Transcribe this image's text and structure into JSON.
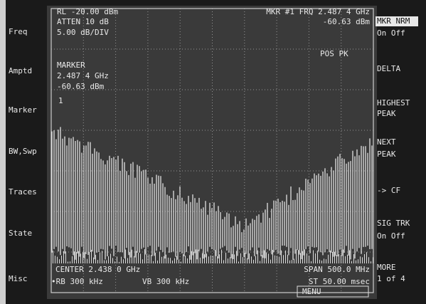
{
  "left_menu": [
    "Freq",
    "Amptd",
    "Marker",
    "BW,Swp",
    "Traces",
    "State",
    "Misc"
  ],
  "header": {
    "ref_level": "RL -20.00 dBm",
    "marker_freq": "MKR #1 FRQ 2.487 4 GHz",
    "atten": "ATTEN 10 dB",
    "marker_amp": "-60.63 dBm",
    "scale": "5.00 dB/DIV",
    "peak_mode": "POS PK"
  },
  "marker_box": {
    "title": "MARKER",
    "freq": "2.487 4 GHz",
    "amp": "-60.63 dBm",
    "number": "1"
  },
  "footer": {
    "center": "CENTER 2.438 0 GHz",
    "span": "SPAN 500.0 MHz",
    "rbw": "•RB 300 kHz",
    "vbw": "VB 300 kHz",
    "sweep": "ST 50.00 msec",
    "menu": "MENU"
  },
  "right_menu": [
    [
      "MKR NRM",
      "On Off"
    ],
    [
      "DELTA"
    ],
    [
      "HIGHEST",
      "PEAK"
    ],
    [
      "NEXT",
      "PEAK"
    ],
    [
      "-> CF"
    ],
    [
      "SIG TRK",
      "On Off"
    ],
    [
      "MORE",
      "1 of 4"
    ]
  ]
}
